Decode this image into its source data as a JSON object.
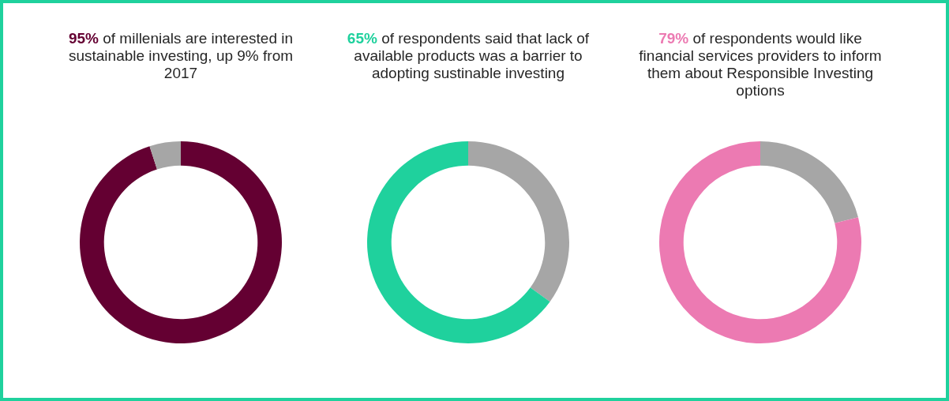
{
  "chart_data": [
    {
      "type": "donut",
      "title": "95% of millenials are interested in sustainable investing, up 9% from 2017",
      "categories": [
        null,
        null
      ],
      "values": [
        95,
        5
      ],
      "colors": [
        "#640032",
        "#a6a6a6"
      ]
    },
    {
      "type": "donut",
      "title": "65% of respondents said that lack of available products was a barrier to adopting sustinable investing",
      "categories": [
        null,
        null
      ],
      "values": [
        35,
        65
      ],
      "colors": [
        "#a6a6a6",
        "#1fd19d"
      ]
    },
    {
      "type": "donut",
      "title": "79% of respondents would like financial services providers to inform them about Responsible Investing options",
      "categories": [
        null,
        null
      ],
      "values": [
        21,
        79
      ],
      "colors": [
        "#a6a6a6",
        "#ec7ab2"
      ]
    }
  ]
}
